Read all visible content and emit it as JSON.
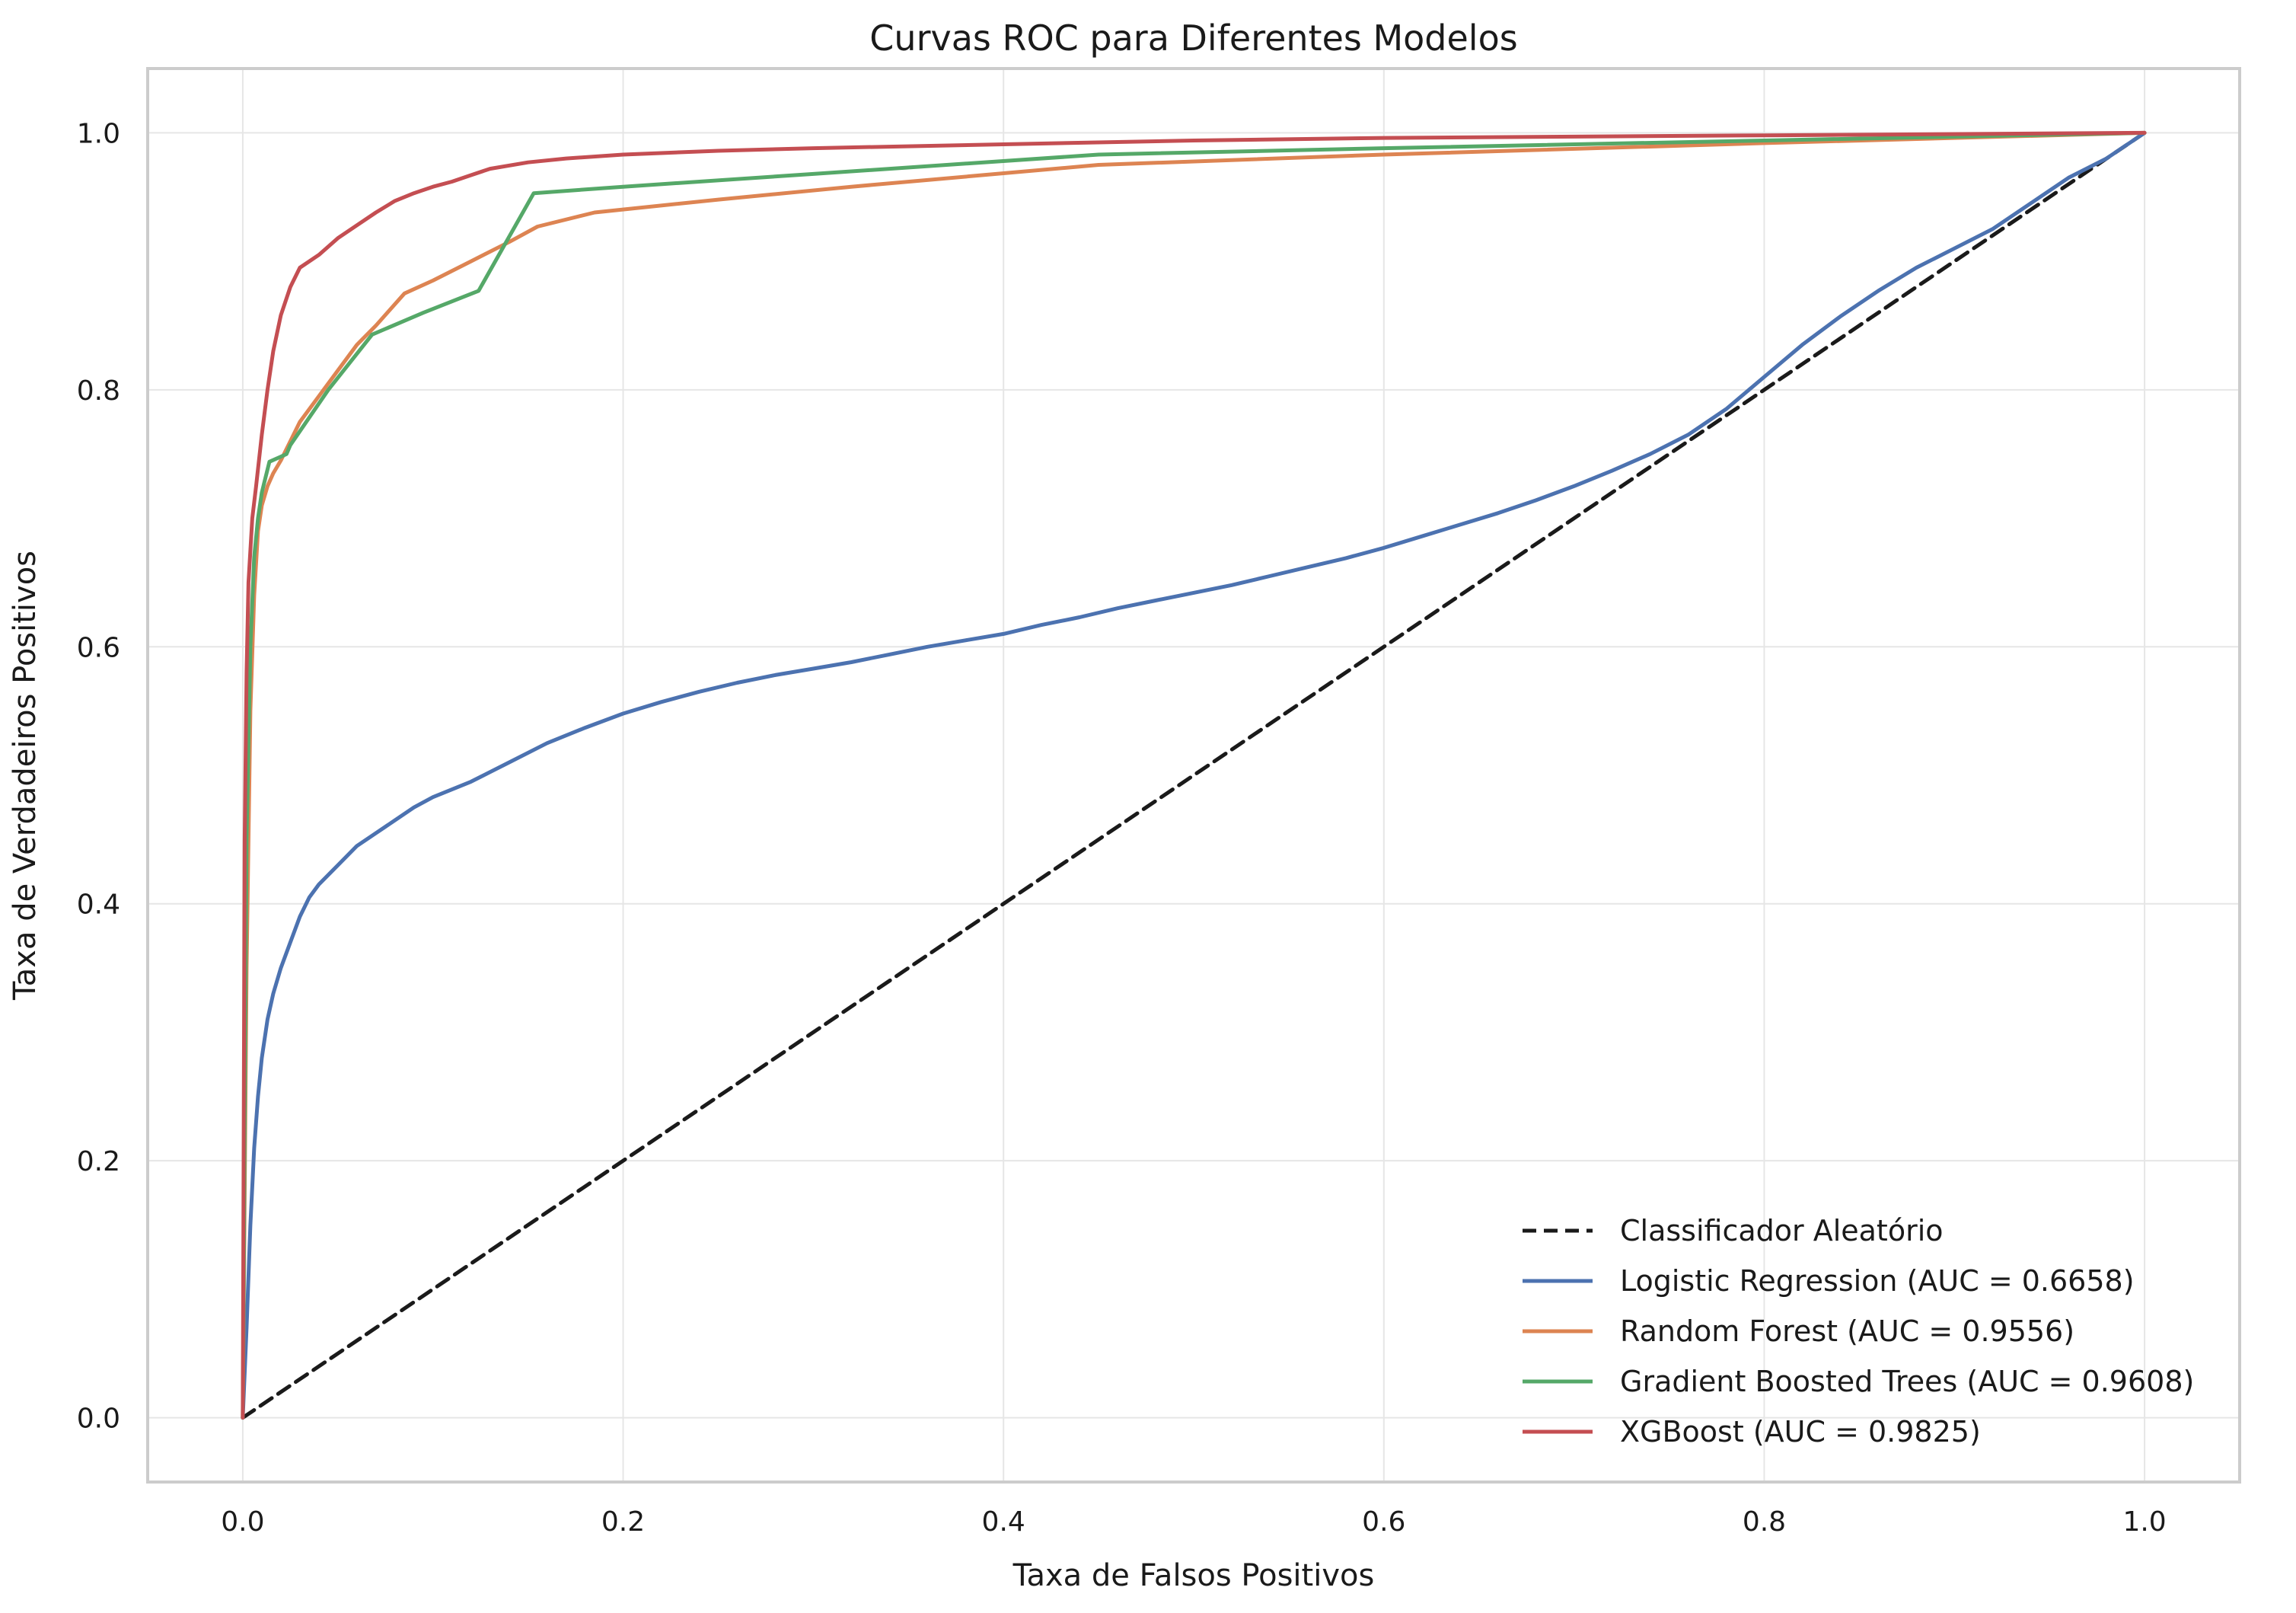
{
  "chart_data": {
    "type": "line",
    "title": "Curvas ROC para Diferentes Modelos",
    "xlabel": "Taxa de Falsos Positivos",
    "ylabel": "Taxa de Verdadeiros Positivos",
    "xlim": [
      -0.05,
      1.05
    ],
    "ylim": [
      -0.05,
      1.05
    ],
    "xticks": [
      0.0,
      0.2,
      0.4,
      0.6,
      0.8,
      1.0
    ],
    "yticks": [
      0.0,
      0.2,
      0.4,
      0.6,
      0.8,
      1.0
    ],
    "xtick_labels": [
      "0.0",
      "0.2",
      "0.4",
      "0.6",
      "0.8",
      "1.0"
    ],
    "ytick_labels": [
      "0.0",
      "0.2",
      "0.4",
      "0.6",
      "0.8",
      "1.0"
    ],
    "grid": true,
    "legend_position": "bottom-right",
    "series": [
      {
        "name": "Classificador Aleatório",
        "color": "#1a1a1a",
        "dashed": true,
        "x": [
          0,
          1
        ],
        "y": [
          0,
          1
        ]
      },
      {
        "name": "Logistic Regression (AUC = 0.6658)",
        "color": "#4c72b0",
        "dashed": false,
        "x": [
          0,
          0.002,
          0.004,
          0.006,
          0.008,
          0.01,
          0.013,
          0.016,
          0.02,
          0.025,
          0.03,
          0.035,
          0.04,
          0.05,
          0.06,
          0.07,
          0.08,
          0.09,
          0.1,
          0.12,
          0.14,
          0.16,
          0.18,
          0.2,
          0.22,
          0.24,
          0.26,
          0.28,
          0.3,
          0.32,
          0.34,
          0.36,
          0.38,
          0.4,
          0.42,
          0.44,
          0.46,
          0.48,
          0.5,
          0.52,
          0.54,
          0.56,
          0.58,
          0.6,
          0.62,
          0.64,
          0.66,
          0.68,
          0.7,
          0.72,
          0.74,
          0.76,
          0.78,
          0.8,
          0.82,
          0.84,
          0.86,
          0.88,
          0.9,
          0.92,
          0.94,
          0.96,
          0.98,
          1.0
        ],
        "y": [
          0,
          0.07,
          0.15,
          0.21,
          0.25,
          0.28,
          0.31,
          0.33,
          0.35,
          0.37,
          0.39,
          0.405,
          0.415,
          0.43,
          0.445,
          0.455,
          0.465,
          0.475,
          0.483,
          0.495,
          0.51,
          0.525,
          0.537,
          0.548,
          0.557,
          0.565,
          0.572,
          0.578,
          0.583,
          0.588,
          0.594,
          0.6,
          0.605,
          0.61,
          0.617,
          0.623,
          0.63,
          0.636,
          0.642,
          0.648,
          0.655,
          0.662,
          0.669,
          0.677,
          0.686,
          0.695,
          0.704,
          0.714,
          0.725,
          0.737,
          0.75,
          0.765,
          0.785,
          0.81,
          0.835,
          0.857,
          0.877,
          0.895,
          0.91,
          0.925,
          0.945,
          0.965,
          0.98,
          1.0
        ]
      },
      {
        "name": "Random Forest (AUC = 0.9556)",
        "color": "#dd8452",
        "dashed": false,
        "x": [
          0,
          0.002,
          0.004,
          0.006,
          0.008,
          0.01,
          0.013,
          0.016,
          0.02,
          0.025,
          0.03,
          0.04,
          0.05,
          0.06,
          0.07,
          0.085,
          0.1,
          0.12,
          0.14,
          0.155,
          0.185,
          0.25,
          0.32,
          0.45,
          0.6,
          0.8,
          1.0
        ],
        "y": [
          0,
          0.35,
          0.55,
          0.64,
          0.69,
          0.71,
          0.725,
          0.735,
          0.745,
          0.76,
          0.775,
          0.795,
          0.815,
          0.835,
          0.85,
          0.875,
          0.885,
          0.9,
          0.915,
          0.927,
          0.938,
          0.948,
          0.958,
          0.975,
          0.983,
          0.992,
          1.0
        ]
      },
      {
        "name": "Gradient Boosted Trees (AUC = 0.9608)",
        "color": "#55a868",
        "dashed": false,
        "x": [
          0,
          0.002,
          0.004,
          0.006,
          0.008,
          0.01,
          0.014,
          0.02,
          0.023,
          0.025,
          0.045,
          0.068,
          0.095,
          0.124,
          0.153,
          0.2,
          0.3,
          0.45,
          0.6,
          0.8,
          1.0
        ],
        "y": [
          0,
          0.45,
          0.6,
          0.67,
          0.7,
          0.72,
          0.744,
          0.748,
          0.75,
          0.757,
          0.8,
          0.843,
          0.86,
          0.877,
          0.953,
          0.958,
          0.968,
          0.983,
          0.988,
          0.994,
          1.0
        ]
      },
      {
        "name": "XGBoost (AUC = 0.9825)",
        "color": "#c44e52",
        "dashed": false,
        "x": [
          0,
          0.001,
          0.002,
          0.003,
          0.005,
          0.007,
          0.01,
          0.013,
          0.016,
          0.02,
          0.025,
          0.03,
          0.04,
          0.05,
          0.06,
          0.07,
          0.08,
          0.09,
          0.1,
          0.11,
          0.12,
          0.13,
          0.15,
          0.17,
          0.2,
          0.25,
          0.3,
          0.4,
          0.5,
          0.6,
          0.8,
          1.0
        ],
        "y": [
          0,
          0.45,
          0.58,
          0.65,
          0.7,
          0.725,
          0.765,
          0.8,
          0.83,
          0.858,
          0.88,
          0.895,
          0.905,
          0.918,
          0.928,
          0.938,
          0.947,
          0.953,
          0.958,
          0.962,
          0.967,
          0.972,
          0.977,
          0.98,
          0.983,
          0.986,
          0.988,
          0.991,
          0.994,
          0.996,
          0.998,
          1.0
        ]
      }
    ]
  }
}
